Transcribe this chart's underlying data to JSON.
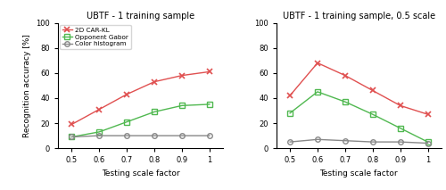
{
  "left_title": "UBTF - 1 training sample",
  "right_title": "UBTF - 1 training sample, 0.5 scale",
  "xlabel": "Testing scale factor",
  "ylabel": "Recognition accuracy [%]",
  "x": [
    0.5,
    0.6,
    0.7,
    0.8,
    0.9,
    1.0
  ],
  "left": {
    "car_kl": [
      19,
      31,
      43,
      53,
      58,
      61
    ],
    "gabor": [
      9,
      13,
      21,
      29,
      34,
      35
    ],
    "hist": [
      9,
      10,
      10,
      10,
      10,
      10
    ]
  },
  "right": {
    "car_kl": [
      42,
      68,
      58,
      46,
      34,
      27
    ],
    "gabor": [
      28,
      45,
      37,
      27,
      16,
      5
    ],
    "hist": [
      5,
      7,
      6,
      5,
      5,
      4
    ]
  },
  "colors": {
    "car_kl": "#e05050",
    "gabor": "#50b850",
    "hist": "#888888"
  },
  "legend": [
    "2D CAR-KL",
    "Opponent Gabor",
    "Color histogram"
  ]
}
